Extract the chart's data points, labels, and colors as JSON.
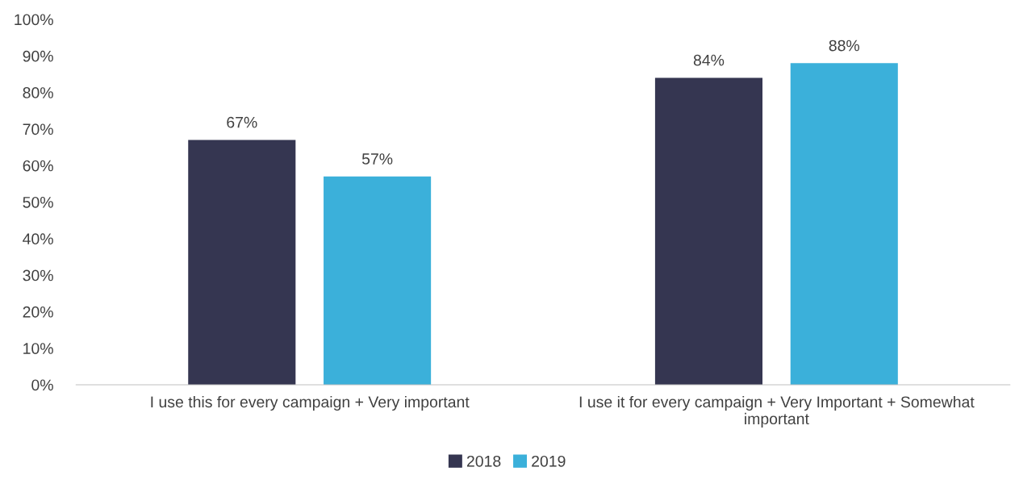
{
  "chart_data": {
    "type": "bar",
    "categories": [
      "I use this for every campaign + Very important",
      "I use it for every campaign + Very Important + Somewhat important"
    ],
    "series": [
      {
        "name": "2018",
        "color": "#353651",
        "values": [
          67,
          84
        ],
        "value_labels": [
          "67%",
          "84%"
        ]
      },
      {
        "name": "2019",
        "color": "#3bb0da",
        "values": [
          57,
          88
        ],
        "value_labels": [
          "57%",
          "88%"
        ]
      }
    ],
    "ylim": [
      0,
      100
    ],
    "yticks": [
      {
        "value": 0,
        "label": "0%"
      },
      {
        "value": 10,
        "label": "10%"
      },
      {
        "value": 20,
        "label": "20%"
      },
      {
        "value": 30,
        "label": "30%"
      },
      {
        "value": 40,
        "label": "40%"
      },
      {
        "value": 50,
        "label": "50%"
      },
      {
        "value": 60,
        "label": "60%"
      },
      {
        "value": 70,
        "label": "70%"
      },
      {
        "value": 80,
        "label": "80%"
      },
      {
        "value": 90,
        "label": "90%"
      },
      {
        "value": 100,
        "label": "100%"
      }
    ],
    "grid": false,
    "legend": "bottom"
  }
}
